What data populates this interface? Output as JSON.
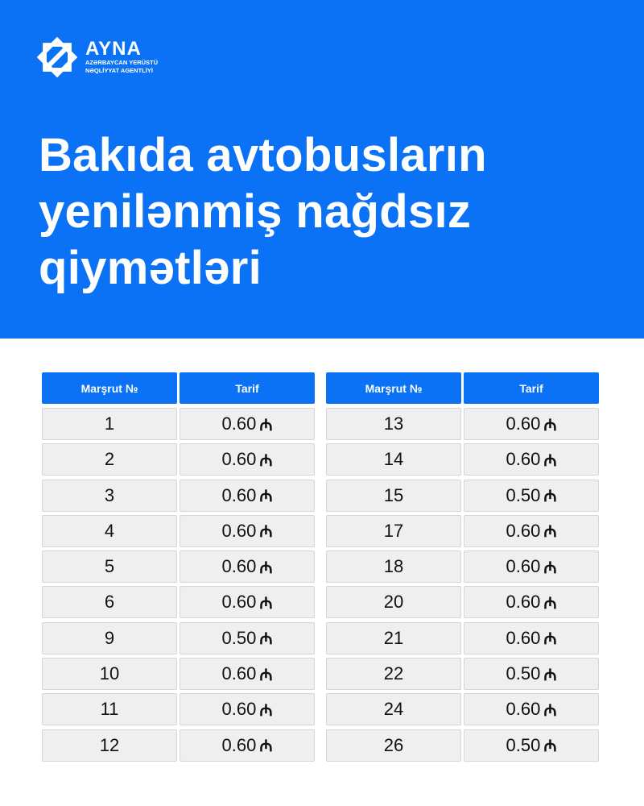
{
  "logo": {
    "brand": "AYNA",
    "line1": "AZƏRBAYCAN YERÜSTÜ",
    "line2": "NƏQLİYYAT AGENTLİYİ"
  },
  "title_lines": [
    "Bakıda avtobusların",
    "yenilənmiş nağdsız",
    "qiymətləri"
  ],
  "colors": {
    "accent": "#0b72f6"
  },
  "currency_symbol": "₼",
  "tables": [
    {
      "headers": [
        "Marşrut №",
        "Tarif"
      ],
      "rows": [
        [
          "1",
          "0.60"
        ],
        [
          "2",
          "0.60"
        ],
        [
          "3",
          "0.60"
        ],
        [
          "4",
          "0.60"
        ],
        [
          "5",
          "0.60"
        ],
        [
          "6",
          "0.60"
        ],
        [
          "9",
          "0.50"
        ],
        [
          "10",
          "0.60"
        ],
        [
          "11",
          "0.60"
        ],
        [
          "12",
          "0.60"
        ]
      ]
    },
    {
      "headers": [
        "Marşrut №",
        "Tarif"
      ],
      "rows": [
        [
          "13",
          "0.60"
        ],
        [
          "14",
          "0.60"
        ],
        [
          "15",
          "0.50"
        ],
        [
          "17",
          "0.60"
        ],
        [
          "18",
          "0.60"
        ],
        [
          "20",
          "0.60"
        ],
        [
          "21",
          "0.60"
        ],
        [
          "22",
          "0.50"
        ],
        [
          "24",
          "0.60"
        ],
        [
          "26",
          "0.50"
        ]
      ]
    }
  ]
}
